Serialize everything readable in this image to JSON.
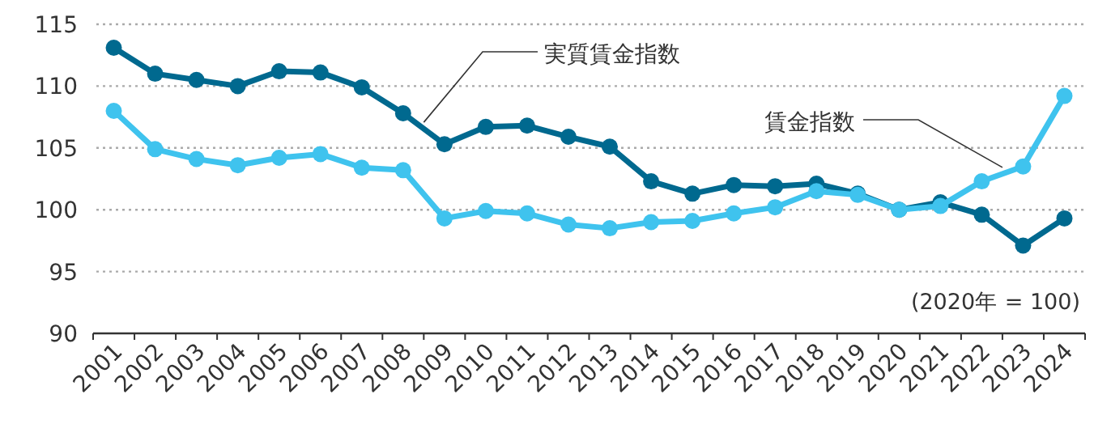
{
  "chart_data": {
    "type": "line",
    "categories": [
      "2001",
      "2002",
      "2003",
      "2004",
      "2005",
      "2006",
      "2007",
      "2008",
      "2009",
      "2010",
      "2011",
      "2012",
      "2013",
      "2014",
      "2015",
      "2016",
      "2017",
      "2018",
      "2019",
      "2020",
      "2021",
      "2022",
      "2023",
      "2024"
    ],
    "series": [
      {
        "name": "実質賃金指数",
        "color": "#00698f",
        "values": [
          113.1,
          111.0,
          110.5,
          110.0,
          111.2,
          111.1,
          109.9,
          107.8,
          105.3,
          106.7,
          106.8,
          105.9,
          105.1,
          102.3,
          101.3,
          102.0,
          101.9,
          102.1,
          101.3,
          100.0,
          100.6,
          99.6,
          97.1,
          99.3
        ]
      },
      {
        "name": "賃金指数",
        "color": "#3fc3ee",
        "values": [
          108.0,
          104.9,
          104.1,
          103.6,
          104.2,
          104.5,
          103.4,
          103.2,
          99.3,
          99.9,
          99.7,
          98.8,
          98.5,
          99.0,
          99.1,
          99.7,
          100.2,
          101.5,
          101.2,
          100.0,
          100.3,
          102.3,
          103.5,
          109.2
        ]
      }
    ],
    "ylim": [
      90,
      115
    ],
    "yticks": [
      90,
      95,
      100,
      105,
      110,
      115
    ],
    "grid": "y",
    "marker": "circle",
    "line_style": "solid",
    "annotations": [
      "(2020年 = 100)"
    ]
  }
}
